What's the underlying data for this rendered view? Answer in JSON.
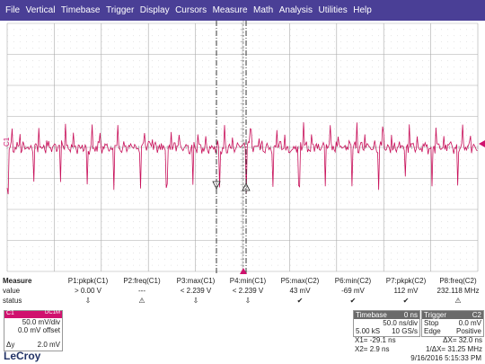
{
  "menu": [
    "File",
    "Vertical",
    "Timebase",
    "Trigger",
    "Display",
    "Cursors",
    "Measure",
    "Math",
    "Analysis",
    "Utilities",
    "Help"
  ],
  "channel_marker": "C1",
  "cursor_markers": {
    "left": "1",
    "right": "2"
  },
  "colors": {
    "trace": "#c8105a",
    "menubar": "#4a3f96",
    "grid": "#9a9a9a",
    "channel": "#d0126e"
  },
  "measure": {
    "title": "Measure",
    "row_labels": {
      "value": "value",
      "status": "status"
    },
    "columns": [
      {
        "param": "P1:pkpk(C1)",
        "value": "> 0.00 V",
        "status": "⇩"
      },
      {
        "param": "P2:freq(C1)",
        "value": "---",
        "status": "⚠"
      },
      {
        "param": "P3:max(C1)",
        "value": "< 2.239 V",
        "status": "⇩"
      },
      {
        "param": "P4:min(C1)",
        "value": "< 2.239 V",
        "status": "⇩"
      },
      {
        "param": "P5:max(C2)",
        "value": "43 mV",
        "status": "✔"
      },
      {
        "param": "P6:min(C2)",
        "value": "-69 mV",
        "status": "✔"
      },
      {
        "param": "P7:pkpk(C2)",
        "value": "112 mV",
        "status": "✔"
      },
      {
        "param": "P8:freq(C2)",
        "value": "232.118 MHz",
        "status": "⚠"
      }
    ]
  },
  "channel_box": {
    "label": "C1",
    "coupling": "DC1M",
    "vdiv": "50.0 mV/div",
    "offset": "0.0 mV offset",
    "delta_label": "Δy",
    "delta_value": "2.0 mV"
  },
  "timebase": {
    "title": "Timebase",
    "delay": "0 ns",
    "tdiv": "50.0 ns/div",
    "samples": "5.00 kS",
    "rate": "10 GS/s"
  },
  "trigger": {
    "title": "Trigger",
    "channel": "C2",
    "mode": "Stop",
    "level": "0.0 mV",
    "type": "Edge",
    "slope": "Positive"
  },
  "cursors": {
    "x1_label": "X1=",
    "x1": "-29.1 ns",
    "dx_label": "ΔX=",
    "dx": "32.0 ns",
    "x2_label": "X2=",
    "x2": "2.9 ns",
    "inv_label": "1/ΔX=",
    "inv": "31.25 MHz"
  },
  "timestamp": "9/16/2016 5:15:33 PM",
  "logo": "LeCroy"
}
